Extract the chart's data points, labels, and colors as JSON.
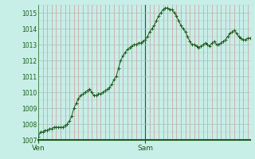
{
  "background_color": "#c8eee8",
  "plot_bg_color": "#c8eee8",
  "line_color": "#1a5c1a",
  "marker_color": "#1a5c1a",
  "grid_color_h": "#a8c8c0",
  "grid_color_v": "#d09898",
  "axis_color": "#1a5c1a",
  "tick_label_color": "#1a5c1a",
  "ylim": [
    1007.0,
    1015.5
  ],
  "yticks": [
    1007,
    1008,
    1009,
    1010,
    1011,
    1012,
    1013,
    1014,
    1015
  ],
  "xtick_labels": [
    "Ven",
    "Sam"
  ],
  "xtick_positions": [
    0,
    48
  ],
  "x_values": [
    0,
    1,
    2,
    3,
    4,
    5,
    6,
    7,
    8,
    9,
    10,
    11,
    12,
    13,
    14,
    15,
    16,
    17,
    18,
    19,
    20,
    21,
    22,
    23,
    24,
    25,
    26,
    27,
    28,
    29,
    30,
    31,
    32,
    33,
    34,
    35,
    36,
    37,
    38,
    39,
    40,
    41,
    42,
    43,
    44,
    45,
    46,
    47,
    48,
    49,
    50,
    51,
    52,
    53,
    54,
    55,
    56,
    57,
    58,
    59,
    60,
    61,
    62,
    63,
    64,
    65,
    66,
    67,
    68,
    69,
    70,
    71,
    72,
    73,
    74,
    75,
    76,
    77,
    78,
    79,
    80,
    81,
    82,
    83,
    84,
    85,
    86,
    87,
    88,
    89,
    90,
    91,
    92,
    93,
    94,
    95
  ],
  "y_values": [
    1007.2,
    1007.5,
    1007.5,
    1007.6,
    1007.6,
    1007.7,
    1007.7,
    1007.8,
    1007.8,
    1007.8,
    1007.8,
    1007.8,
    1007.9,
    1008.0,
    1008.2,
    1008.5,
    1009.0,
    1009.3,
    1009.6,
    1009.8,
    1009.9,
    1010.0,
    1010.1,
    1010.2,
    1010.0,
    1009.8,
    1009.8,
    1009.9,
    1009.9,
    1010.0,
    1010.1,
    1010.2,
    1010.3,
    1010.5,
    1010.8,
    1011.0,
    1011.5,
    1012.0,
    1012.3,
    1012.5,
    1012.7,
    1012.8,
    1012.9,
    1013.0,
    1013.0,
    1013.1,
    1013.1,
    1013.2,
    1013.3,
    1013.5,
    1013.8,
    1014.0,
    1014.2,
    1014.5,
    1014.8,
    1015.0,
    1015.2,
    1015.3,
    1015.3,
    1015.2,
    1015.2,
    1015.0,
    1014.8,
    1014.5,
    1014.2,
    1014.0,
    1013.8,
    1013.5,
    1013.2,
    1013.0,
    1013.0,
    1012.9,
    1012.8,
    1012.9,
    1013.0,
    1013.1,
    1013.0,
    1012.9,
    1013.1,
    1013.2,
    1013.0,
    1013.0,
    1013.1,
    1013.2,
    1013.3,
    1013.5,
    1013.7,
    1013.8,
    1013.9,
    1013.7,
    1013.5,
    1013.4,
    1013.3,
    1013.3,
    1013.4,
    1013.4
  ]
}
